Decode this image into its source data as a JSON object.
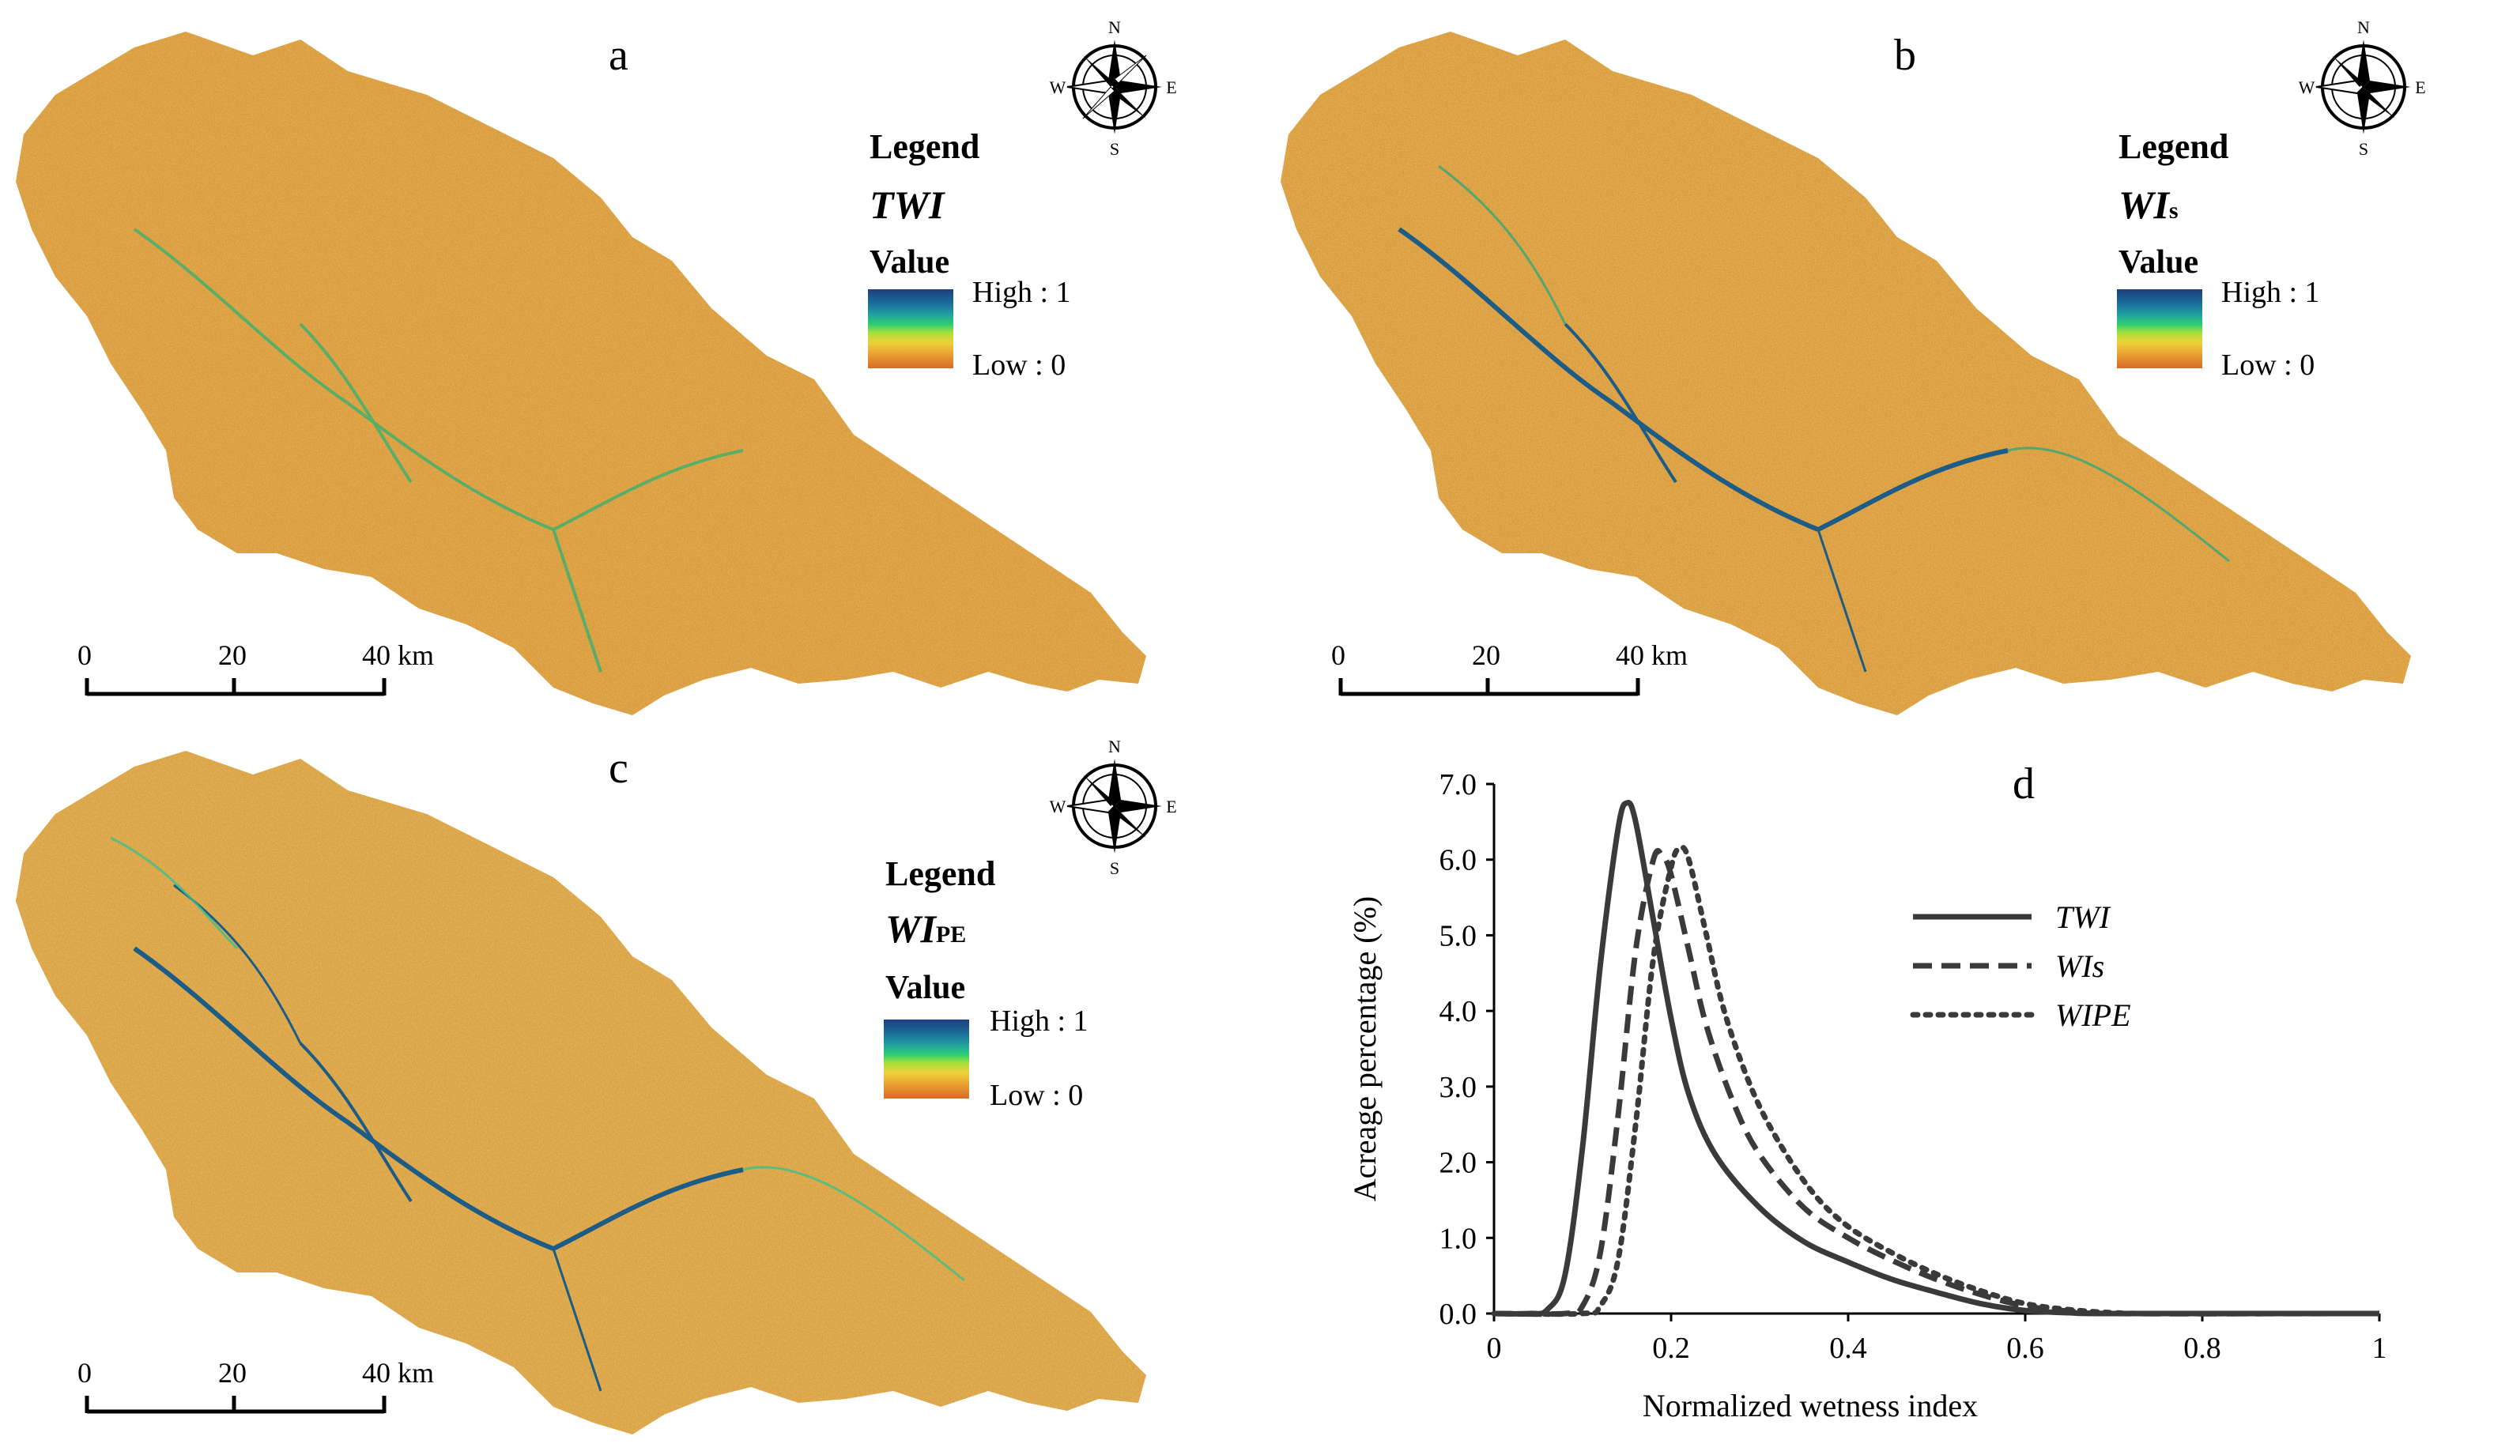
{
  "panels": [
    {
      "letter": "a",
      "legend_title": "Legend",
      "layer_main": "TWI",
      "layer_sub": "",
      "value_label": "Value",
      "high": "High : 1",
      "low": "Low : 0",
      "scale_ticks": [
        "0",
        "20",
        "40 km"
      ]
    },
    {
      "letter": "b",
      "legend_title": "Legend",
      "layer_main": "WI",
      "layer_sub": "s",
      "value_label": "Value",
      "high": "High : 1",
      "low": "Low : 0",
      "scale_ticks": [
        "0",
        "20",
        "40 km"
      ]
    },
    {
      "letter": "c",
      "legend_title": "Legend",
      "layer_main": "WI",
      "layer_sub": "PE",
      "value_label": "Value",
      "high": "High : 1",
      "low": "Low : 0",
      "scale_ticks": [
        "0",
        "20",
        "40 km"
      ]
    }
  ],
  "compass": {
    "n": "N",
    "s": "S",
    "e": "E",
    "w": "W",
    "icon": "compass-rose-icon"
  },
  "colors": {
    "ramp_high": "#1e3f7d",
    "ramp_mid": "#2fcf6f",
    "ramp_low": "#d86a2a",
    "map_base": "#d99a3a",
    "river": "#1d5c86"
  },
  "chart_data": {
    "panel_letter": "d",
    "type": "line",
    "xlabel": "Normalized wetness index",
    "ylabel": "Acreage percentage (%)",
    "xlim": [
      0,
      1
    ],
    "ylim": [
      0,
      7
    ],
    "xticks": [
      "0",
      "0.2",
      "0.4",
      "0.6",
      "0.8",
      "1"
    ],
    "yticks": [
      "0.0",
      "1.0",
      "2.0",
      "3.0",
      "4.0",
      "5.0",
      "6.0",
      "7.0"
    ],
    "legend_position": "top-right",
    "series": [
      {
        "name": "TWI",
        "style": "solid",
        "points": [
          [
            0,
            0
          ],
          [
            0.04,
            0.0
          ],
          [
            0.06,
            0.05
          ],
          [
            0.08,
            0.5
          ],
          [
            0.1,
            2.2
          ],
          [
            0.12,
            4.6
          ],
          [
            0.14,
            6.4
          ],
          [
            0.15,
            6.75
          ],
          [
            0.16,
            6.5
          ],
          [
            0.18,
            5.2
          ],
          [
            0.2,
            3.9
          ],
          [
            0.22,
            2.9
          ],
          [
            0.25,
            2.1
          ],
          [
            0.3,
            1.4
          ],
          [
            0.35,
            0.95
          ],
          [
            0.4,
            0.68
          ],
          [
            0.45,
            0.45
          ],
          [
            0.5,
            0.28
          ],
          [
            0.55,
            0.13
          ],
          [
            0.6,
            0.04
          ],
          [
            0.65,
            0.01
          ],
          [
            0.7,
            0
          ],
          [
            1.0,
            0
          ]
        ]
      },
      {
        "name": "WIs",
        "style": "dashed",
        "points": [
          [
            0,
            0
          ],
          [
            0.08,
            0.0
          ],
          [
            0.1,
            0.1
          ],
          [
            0.12,
            0.8
          ],
          [
            0.14,
            2.6
          ],
          [
            0.16,
            4.8
          ],
          [
            0.18,
            6.0
          ],
          [
            0.19,
            6.05
          ],
          [
            0.2,
            5.8
          ],
          [
            0.22,
            4.8
          ],
          [
            0.24,
            3.8
          ],
          [
            0.27,
            2.8
          ],
          [
            0.3,
            2.1
          ],
          [
            0.35,
            1.4
          ],
          [
            0.4,
            1.0
          ],
          [
            0.45,
            0.7
          ],
          [
            0.5,
            0.45
          ],
          [
            0.55,
            0.25
          ],
          [
            0.6,
            0.1
          ],
          [
            0.65,
            0.03
          ],
          [
            0.7,
            0
          ],
          [
            1.0,
            0
          ]
        ]
      },
      {
        "name": "WIPE",
        "style": "dotted",
        "points": [
          [
            0,
            0
          ],
          [
            0.1,
            0.0
          ],
          [
            0.12,
            0.1
          ],
          [
            0.14,
            0.7
          ],
          [
            0.16,
            2.5
          ],
          [
            0.18,
            4.7
          ],
          [
            0.2,
            5.9
          ],
          [
            0.21,
            6.15
          ],
          [
            0.22,
            6.0
          ],
          [
            0.24,
            5.0
          ],
          [
            0.26,
            4.0
          ],
          [
            0.29,
            3.0
          ],
          [
            0.32,
            2.3
          ],
          [
            0.36,
            1.6
          ],
          [
            0.4,
            1.15
          ],
          [
            0.45,
            0.8
          ],
          [
            0.5,
            0.52
          ],
          [
            0.55,
            0.3
          ],
          [
            0.6,
            0.13
          ],
          [
            0.65,
            0.05
          ],
          [
            0.7,
            0.01
          ],
          [
            0.75,
            0
          ],
          [
            1.0,
            0
          ]
        ]
      }
    ]
  }
}
